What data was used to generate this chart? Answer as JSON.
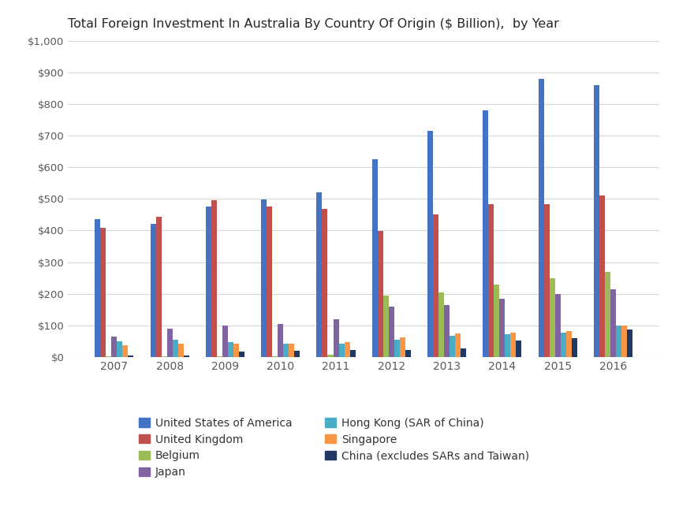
{
  "title": "Total Foreign Investment In Australia By Country Of Origin ($ Billion),  by Year",
  "years": [
    2007,
    2008,
    2009,
    2010,
    2011,
    2012,
    2013,
    2014,
    2015,
    2016
  ],
  "series": {
    "United States of America": [
      435,
      420,
      475,
      498,
      520,
      625,
      715,
      780,
      880,
      860
    ],
    "United Kingdom": [
      408,
      443,
      497,
      475,
      468,
      398,
      452,
      483,
      483,
      510
    ],
    "Belgium": [
      3,
      3,
      3,
      3,
      8,
      195,
      205,
      228,
      248,
      270
    ],
    "Japan": [
      65,
      90,
      100,
      105,
      120,
      160,
      165,
      183,
      200,
      215
    ],
    "Hong Kong (SAR of China)": [
      50,
      55,
      48,
      43,
      42,
      55,
      68,
      72,
      78,
      100
    ],
    "Singapore": [
      38,
      43,
      43,
      43,
      47,
      62,
      75,
      78,
      83,
      100
    ],
    "China (excludes SARs and Taiwan)": [
      5,
      5,
      18,
      20,
      23,
      23,
      28,
      52,
      60,
      88
    ]
  },
  "colors": {
    "United States of America": "#4472C4",
    "United Kingdom": "#C0504D",
    "Belgium": "#9BBB59",
    "Japan": "#8064A2",
    "Hong Kong (SAR of China)": "#4BACC6",
    "Singapore": "#F79646",
    "China (excludes SARs and Taiwan)": "#1F3864"
  },
  "ylim": [
    0,
    1000
  ],
  "yticks": [
    0,
    100,
    200,
    300,
    400,
    500,
    600,
    700,
    800,
    900,
    1000
  ],
  "ytick_labels": [
    "$0",
    "$100",
    "$200",
    "$300",
    "$400",
    "$500",
    "$600",
    "$700",
    "$800",
    "$900",
    "$1,000"
  ],
  "background_color": "#FFFFFF",
  "grid_color": "#D9D9D9",
  "legend_order": [
    [
      "United States of America",
      "United Kingdom"
    ],
    [
      "Belgium",
      "Japan"
    ],
    [
      "Hong Kong (SAR of China)",
      "Singapore"
    ],
    [
      "China (excludes SARs and Taiwan)",
      ""
    ]
  ]
}
